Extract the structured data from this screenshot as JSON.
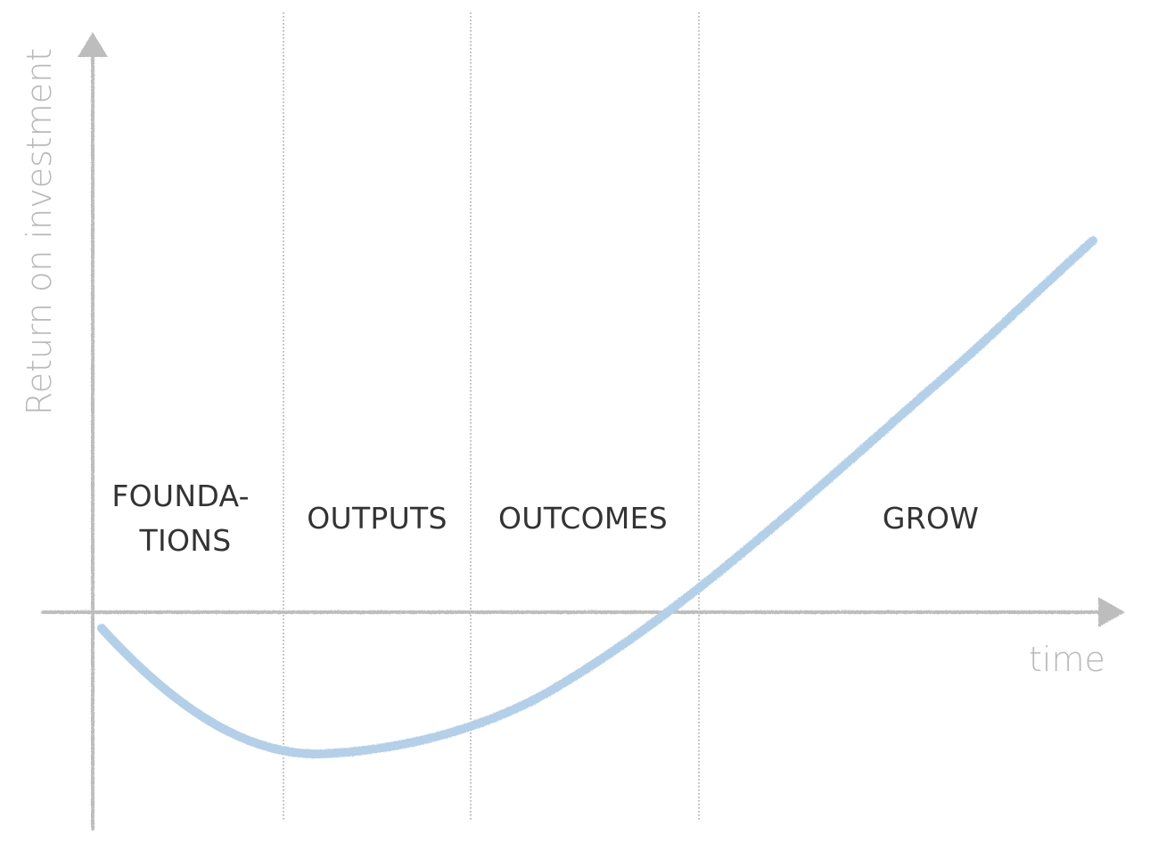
{
  "axes": {
    "y_label": "Return on investment",
    "x_label": "time"
  },
  "phases": [
    {
      "lines": [
        "FOUNDA-",
        "TIONS"
      ]
    },
    {
      "lines": [
        "OUTPUTS"
      ]
    },
    {
      "lines": [
        "OUTCOMES"
      ]
    },
    {
      "lines": [
        "GROW"
      ]
    }
  ],
  "colors": {
    "curve": "#b4cfe8",
    "axis": "#bdbdbd",
    "divider": "#8a8a8a",
    "label": "#333333"
  }
}
